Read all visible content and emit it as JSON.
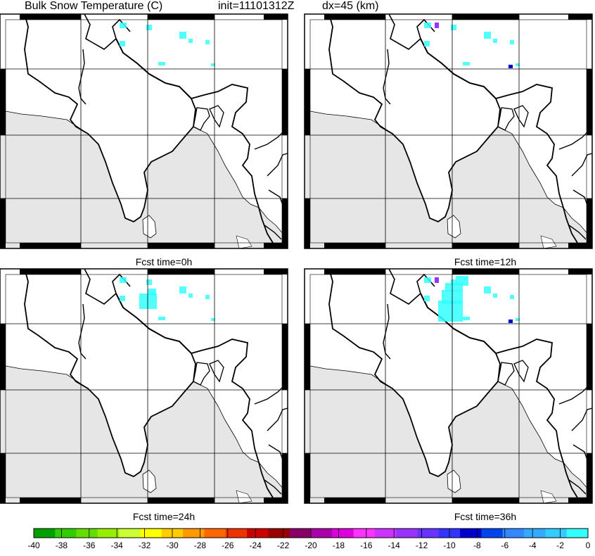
{
  "title": {
    "field": "Bulk Snow Temperature (C)",
    "init": "init=11101312Z",
    "dx": "dx=45 (km)"
  },
  "panels": [
    {
      "caption": "Fcst time=0h"
    },
    {
      "caption": "Fcst time=12h"
    },
    {
      "caption": "Fcst time=24h"
    },
    {
      "caption": "Fcst time=36h"
    }
  ],
  "colors": {
    "land": "#ffffff",
    "ocean": "#e6e6e6",
    "border": "#000000",
    "grid": "#000000"
  },
  "colorbar": {
    "ticks": [
      "-40",
      "-38",
      "-36",
      "-34",
      "-32",
      "-30",
      "-28",
      "-26",
      "-24",
      "-22",
      "-20",
      "-18",
      "-16",
      "-14",
      "-12",
      "-10",
      "-8",
      "-6",
      "-4",
      "-2",
      "0"
    ],
    "colors": [
      "#00a000",
      "#33cc00",
      "#66dd00",
      "#99ee00",
      "#ccff33",
      "#ffff00",
      "#ffcc00",
      "#ff9900",
      "#ff6600",
      "#ee3300",
      "#cc0000",
      "#990000",
      "#880066",
      "#aa00aa",
      "#dd00dd",
      "#ff33ff",
      "#cc33ff",
      "#9933ff",
      "#6633ff",
      "#3333ff",
      "#0000cc",
      "#0044ee",
      "#3388ff",
      "#33aaff",
      "#33ccff",
      "#33ffff"
    ]
  }
}
